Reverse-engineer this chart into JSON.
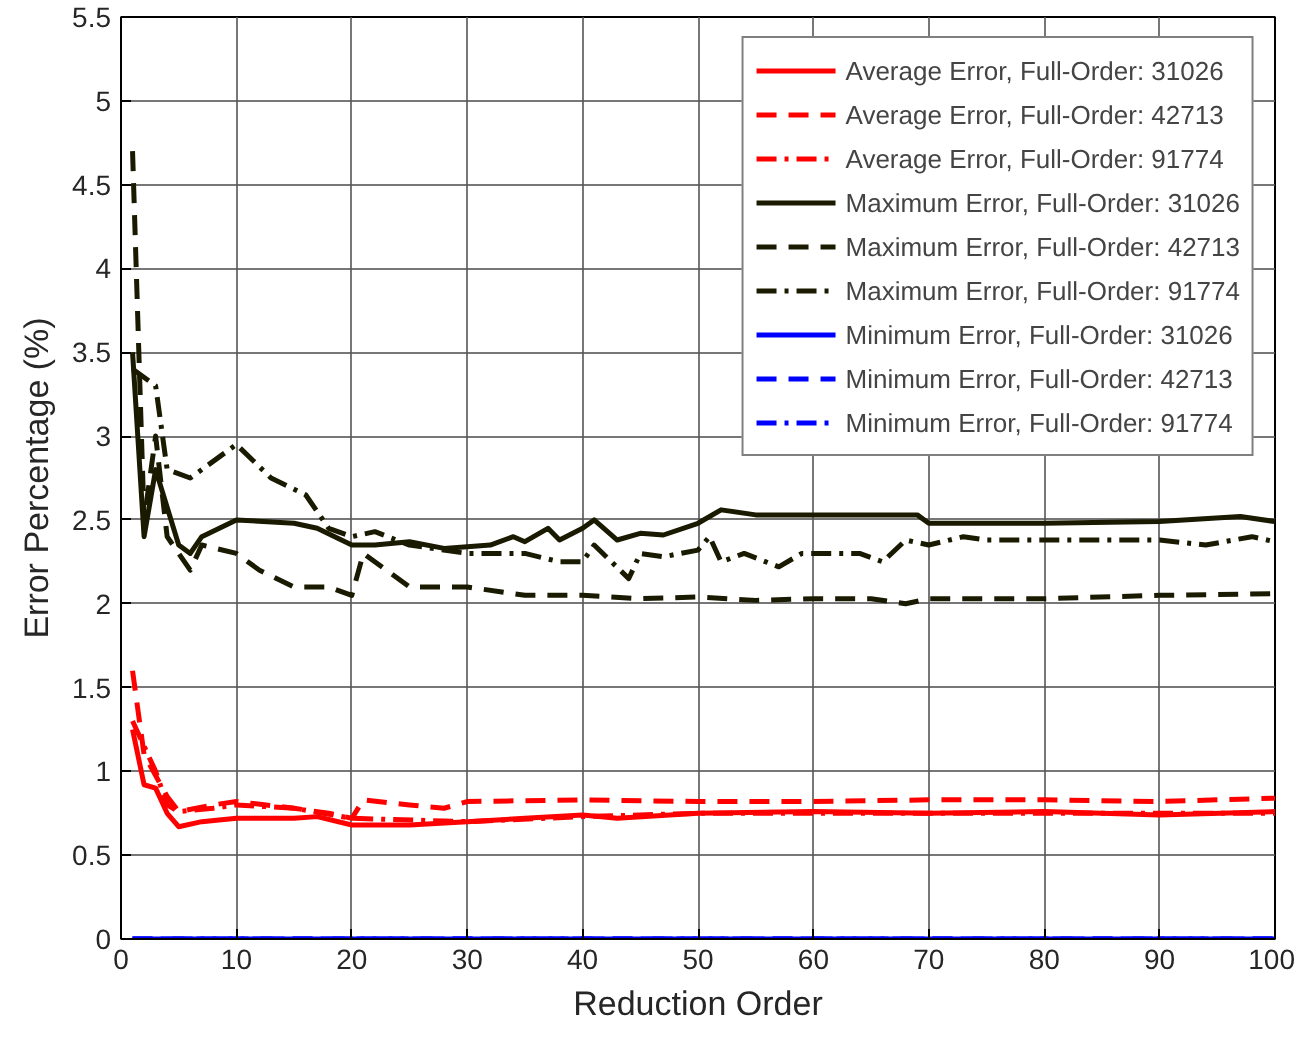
{
  "chart_data": {
    "type": "line",
    "xlabel": "Reduction Order",
    "ylabel": "Error Percentage (%)",
    "xlim": [
      0,
      100
    ],
    "ylim": [
      0,
      5.5
    ],
    "xticks": [
      0,
      10,
      20,
      30,
      40,
      50,
      60,
      70,
      80,
      90,
      100
    ],
    "yticks": [
      0,
      0.5,
      1,
      1.5,
      2,
      2.5,
      3,
      3.5,
      4,
      4.5,
      5,
      5.5
    ],
    "grid": true,
    "legend": "top right",
    "marker": "none",
    "series": [
      {
        "name": "Average Error, Full-Order: 31026",
        "color": "#ff0000",
        "line_style": "solid",
        "x": [
          1,
          2,
          3,
          4,
          5,
          7,
          10,
          15,
          17,
          20,
          25,
          30,
          35,
          40,
          43,
          50,
          60,
          70,
          80,
          90,
          100
        ],
        "values": [
          1.25,
          0.92,
          0.9,
          0.75,
          0.67,
          0.7,
          0.72,
          0.72,
          0.73,
          0.68,
          0.68,
          0.7,
          0.72,
          0.74,
          0.72,
          0.75,
          0.76,
          0.75,
          0.76,
          0.74,
          0.76
        ]
      },
      {
        "name": "Average Error, Full-Order: 42713",
        "color": "#ff0000",
        "line_style": "dashed",
        "x": [
          1,
          2,
          4,
          5,
          8,
          10,
          15,
          18,
          20,
          21,
          25,
          28,
          30,
          40,
          50,
          60,
          70,
          80,
          90,
          100
        ],
        "values": [
          1.6,
          1.1,
          0.85,
          0.76,
          0.8,
          0.82,
          0.78,
          0.75,
          0.72,
          0.83,
          0.8,
          0.78,
          0.82,
          0.83,
          0.82,
          0.82,
          0.83,
          0.83,
          0.82,
          0.84
        ]
      },
      {
        "name": "Average Error, Full-Order: 91774",
        "color": "#ff0000",
        "line_style": "dashdot",
        "x": [
          1,
          3,
          4,
          5,
          8,
          10,
          15,
          20,
          30,
          40,
          50,
          60,
          70,
          80,
          90,
          100
        ],
        "values": [
          1.3,
          1.0,
          0.8,
          0.76,
          0.78,
          0.8,
          0.78,
          0.72,
          0.7,
          0.73,
          0.75,
          0.75,
          0.75,
          0.75,
          0.75,
          0.75
        ]
      },
      {
        "name": "Maximum Error, Full-Order: 31026",
        "color": "#1a1a00",
        "line_style": "solid",
        "x": [
          1,
          2,
          3,
          5,
          6,
          7,
          10,
          15,
          17,
          20,
          22,
          25,
          28,
          32,
          34,
          35,
          37,
          38,
          40,
          41,
          43,
          45,
          47,
          50,
          52,
          55,
          60,
          65,
          69,
          70,
          80,
          90,
          97,
          100
        ],
        "values": [
          3.5,
          2.4,
          2.8,
          2.35,
          2.3,
          2.4,
          2.5,
          2.48,
          2.45,
          2.35,
          2.35,
          2.37,
          2.33,
          2.35,
          2.4,
          2.37,
          2.45,
          2.38,
          2.45,
          2.5,
          2.38,
          2.42,
          2.41,
          2.48,
          2.56,
          2.53,
          2.53,
          2.53,
          2.53,
          2.48,
          2.48,
          2.49,
          2.52,
          2.49
        ]
      },
      {
        "name": "Maximum Error, Full-Order: 42713",
        "color": "#1a1a00",
        "line_style": "dashed",
        "x": [
          1,
          2,
          3,
          4,
          6,
          7,
          10,
          12,
          15,
          18,
          20,
          21,
          25,
          30,
          35,
          40,
          45,
          50,
          55,
          60,
          65,
          68,
          70,
          80,
          90,
          100
        ],
        "values": [
          4.7,
          2.5,
          3.0,
          2.4,
          2.2,
          2.35,
          2.3,
          2.2,
          2.1,
          2.1,
          2.05,
          2.3,
          2.1,
          2.1,
          2.05,
          2.05,
          2.03,
          2.04,
          2.02,
          2.03,
          2.03,
          2.0,
          2.03,
          2.03,
          2.05,
          2.06
        ]
      },
      {
        "name": "Maximum Error, Full-Order: 91774",
        "color": "#1a1a00",
        "line_style": "dashdot",
        "x": [
          1,
          3,
          4,
          6,
          10,
          13,
          16,
          18,
          20,
          22,
          25,
          30,
          35,
          38,
          40,
          41,
          44,
          45,
          47,
          50,
          51,
          52,
          54,
          57,
          59,
          64,
          66,
          68,
          70,
          73,
          75,
          90,
          94,
          98,
          100
        ],
        "values": [
          3.4,
          3.3,
          2.8,
          2.75,
          2.95,
          2.75,
          2.65,
          2.45,
          2.4,
          2.43,
          2.35,
          2.3,
          2.3,
          2.25,
          2.25,
          2.35,
          2.15,
          2.3,
          2.28,
          2.32,
          2.4,
          2.25,
          2.3,
          2.22,
          2.3,
          2.3,
          2.25,
          2.38,
          2.35,
          2.4,
          2.38,
          2.38,
          2.35,
          2.4,
          2.37
        ]
      },
      {
        "name": "Minimum Error, Full-Order: 31026",
        "color": "#0000ff",
        "line_style": "solid",
        "x": [
          1,
          100
        ],
        "values": [
          0,
          0
        ]
      },
      {
        "name": "Minimum Error, Full-Order: 42713",
        "color": "#0000ff",
        "line_style": "dashed",
        "x": [
          1,
          100
        ],
        "values": [
          0,
          0
        ]
      },
      {
        "name": "Minimum Error, Full-Order: 91774",
        "color": "#0000ff",
        "line_style": "dashdot",
        "x": [
          1,
          100
        ],
        "values": [
          0,
          0
        ]
      }
    ]
  }
}
